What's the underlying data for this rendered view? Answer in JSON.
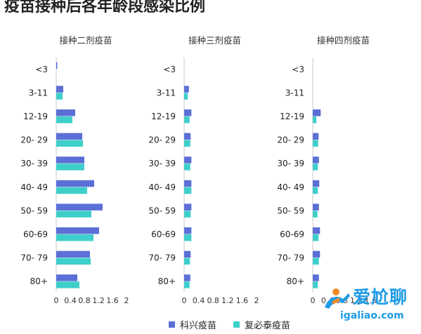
{
  "page": {
    "title": "疫苗接种后各年龄段感染比例"
  },
  "legend": {
    "items": [
      {
        "label": "科兴疫苗",
        "color": "#5b6fd6"
      },
      {
        "label": "复必泰疫苗",
        "color": "#3ecfca"
      }
    ]
  },
  "watermark": {
    "brand": "爱尬聊",
    "url": "igaliao.com"
  },
  "chart_data": [
    {
      "type": "bar",
      "orientation": "horizontal",
      "title": "接种二剂疫苗",
      "categories": [
        "<3",
        "3-11",
        "12-19",
        "20- 29",
        "30- 39",
        "40- 49",
        "50- 59",
        "60-69",
        "70- 79",
        "80+"
      ],
      "xticks": [
        "0",
        "0.4",
        "0.8",
        "1.2",
        "1.6",
        "2"
      ],
      "xlim": [
        0,
        2
      ],
      "series": [
        {
          "name": "科兴疫苗",
          "values": [
            0.03,
            0.2,
            0.54,
            0.74,
            0.8,
            1.08,
            1.32,
            1.22,
            0.96,
            0.6
          ]
        },
        {
          "name": "复必泰疫苗",
          "values": [
            0,
            0.18,
            0.46,
            0.76,
            0.8,
            0.88,
            1.0,
            1.06,
            0.98,
            0.66
          ]
        }
      ]
    },
    {
      "type": "bar",
      "orientation": "horizontal",
      "title": "接种三剂疫苗",
      "categories": [
        "<3",
        "3-11",
        "12-19",
        "20- 29",
        "30- 39",
        "40- 49",
        "50- 59",
        "60-69",
        "70- 79",
        "80+"
      ],
      "xticks": [
        "0",
        "0.4",
        "0.8",
        "1.2",
        "1.6",
        "2"
      ],
      "xlim": [
        0,
        2
      ],
      "series": [
        {
          "name": "科兴疫苗",
          "values": [
            0,
            0.13,
            0.2,
            0.18,
            0.2,
            0.2,
            0.2,
            0.2,
            0.18,
            0.17
          ]
        },
        {
          "name": "复必泰疫苗",
          "values": [
            0,
            0.1,
            0.15,
            0.17,
            0.17,
            0.2,
            0.18,
            0.2,
            0.16,
            0.15
          ]
        }
      ]
    },
    {
      "type": "bar",
      "orientation": "horizontal",
      "title": "接种四剂疫苗",
      "categories": [
        "<3",
        "3-11",
        "12-19",
        "20- 29",
        "30- 39",
        "40- 49",
        "50- 59",
        "60-69",
        "70- 79",
        "80+"
      ],
      "xticks": [
        "0",
        "0.4",
        "0.8",
        "1.2",
        "1.6"
      ],
      "xlim": [
        0,
        2
      ],
      "series": [
        {
          "name": "科兴疫苗",
          "values": [
            0,
            0,
            0.22,
            0.16,
            0.17,
            0.18,
            0.17,
            0.2,
            0.2,
            0.17
          ]
        },
        {
          "name": "复必泰疫苗",
          "values": [
            0,
            0,
            0.1,
            0.15,
            0.14,
            0.14,
            0.13,
            0.16,
            0.17,
            0.14
          ]
        }
      ]
    }
  ]
}
